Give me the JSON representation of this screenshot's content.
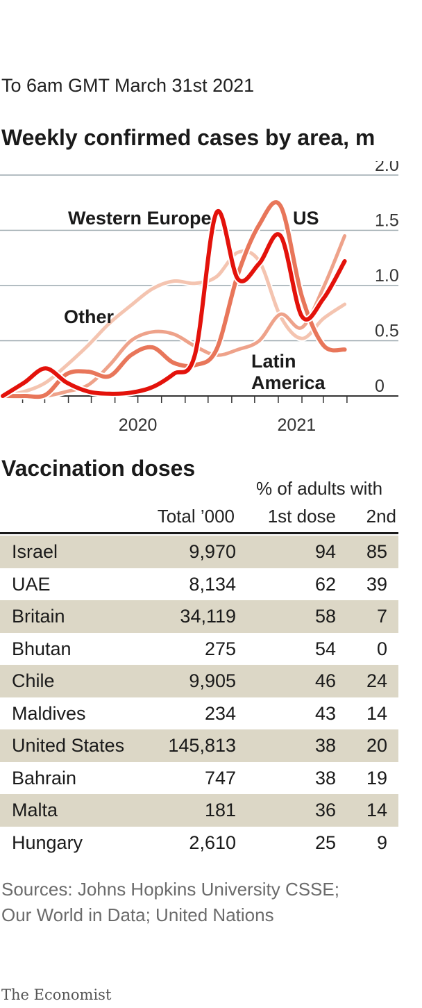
{
  "subtitle": "To 6am GMT March 31st 2021",
  "chart_title": "Weekly confirmed cases by area, m",
  "colors": {
    "western_europe": "#e3120b",
    "us": "#e8765a",
    "latin_america": "#eea28a",
    "other": "#f4c4b0",
    "grid": "#9aa7ad",
    "axis": "#333333",
    "row_shade": "#dcd7c6"
  },
  "chart_data": {
    "type": "line",
    "title": "Weekly confirmed cases by area, m",
    "ylim": [
      0,
      2.0
    ],
    "y_ticks": [
      "0",
      "0.5",
      "1.0",
      "1.5",
      "2.0"
    ],
    "x_tick_labels": [
      "2020",
      "2021"
    ],
    "xlim": [
      "2020-01-06",
      "2021-04-12"
    ],
    "grid": true,
    "series": [
      {
        "name": "Other",
        "color": "#f4c4b0",
        "x": [
          "2020-01-06",
          "2020-02-03",
          "2020-03-02",
          "2020-03-30",
          "2020-04-27",
          "2020-05-25",
          "2020-06-22",
          "2020-07-20",
          "2020-08-17",
          "2020-09-14",
          "2020-10-12",
          "2020-11-09",
          "2020-12-07",
          "2021-01-04",
          "2021-02-01",
          "2021-03-01",
          "2021-03-29"
        ],
        "values": [
          0.0,
          0.04,
          0.12,
          0.28,
          0.46,
          0.66,
          0.82,
          0.97,
          1.04,
          1.02,
          1.08,
          1.3,
          1.22,
          0.72,
          0.52,
          0.7,
          0.83
        ]
      },
      {
        "name": "Latin America",
        "color": "#eea28a",
        "x": [
          "2020-01-06",
          "2020-02-03",
          "2020-03-02",
          "2020-03-30",
          "2020-04-27",
          "2020-05-25",
          "2020-06-22",
          "2020-07-20",
          "2020-08-17",
          "2020-09-14",
          "2020-10-12",
          "2020-11-09",
          "2020-12-07",
          "2021-01-04",
          "2021-02-01",
          "2021-03-01",
          "2021-03-29"
        ],
        "values": [
          0.0,
          0.0,
          0.0,
          0.04,
          0.1,
          0.28,
          0.5,
          0.58,
          0.56,
          0.45,
          0.37,
          0.42,
          0.5,
          0.74,
          0.62,
          0.98,
          1.45
        ]
      },
      {
        "name": "US",
        "color": "#e8765a",
        "x": [
          "2020-01-06",
          "2020-02-03",
          "2020-03-02",
          "2020-03-30",
          "2020-04-27",
          "2020-05-25",
          "2020-06-22",
          "2020-07-20",
          "2020-08-17",
          "2020-09-14",
          "2020-10-12",
          "2020-11-09",
          "2020-12-07",
          "2021-01-04",
          "2021-02-01",
          "2021-03-01",
          "2021-03-29"
        ],
        "values": [
          0.0,
          0.0,
          0.01,
          0.2,
          0.22,
          0.18,
          0.37,
          0.44,
          0.3,
          0.28,
          0.42,
          1.1,
          1.55,
          1.72,
          0.9,
          0.46,
          0.42
        ]
      },
      {
        "name": "Western Europe",
        "color": "#e3120b",
        "x": [
          "2020-01-06",
          "2020-02-03",
          "2020-03-02",
          "2020-03-30",
          "2020-04-27",
          "2020-05-25",
          "2020-06-22",
          "2020-07-20",
          "2020-08-17",
          "2020-09-14",
          "2020-10-12",
          "2020-11-09",
          "2020-12-07",
          "2021-01-04",
          "2021-02-01",
          "2021-03-01",
          "2021-03-29"
        ],
        "values": [
          0.0,
          0.12,
          0.25,
          0.12,
          0.04,
          0.02,
          0.03,
          0.08,
          0.2,
          0.38,
          1.66,
          1.06,
          1.2,
          1.45,
          0.72,
          0.88,
          1.22
        ]
      }
    ],
    "annotations": [
      "Western Europe",
      "US",
      "Other",
      "Latin",
      "America"
    ]
  },
  "vaccination": {
    "title": "Vaccination doses",
    "header_pct": "% of adults with",
    "header_total": "Total ’000",
    "header_first": "1st dose",
    "header_second": "2nd",
    "rows": [
      {
        "country": "Israel",
        "total": "9,970",
        "first": "94",
        "second": "85"
      },
      {
        "country": "UAE",
        "total": "8,134",
        "first": "62",
        "second": "39"
      },
      {
        "country": "Britain",
        "total": "34,119",
        "first": "58",
        "second": "7"
      },
      {
        "country": "Bhutan",
        "total": "275",
        "first": "54",
        "second": "0"
      },
      {
        "country": "Chile",
        "total": "9,905",
        "first": "46",
        "second": "24"
      },
      {
        "country": "Maldives",
        "total": "234",
        "first": "43",
        "second": "14"
      },
      {
        "country": "United States",
        "total": "145,813",
        "first": "38",
        "second": "20"
      },
      {
        "country": "Bahrain",
        "total": "747",
        "first": "38",
        "second": "19"
      },
      {
        "country": "Malta",
        "total": "181",
        "first": "36",
        "second": "14"
      },
      {
        "country": "Hungary",
        "total": "2,610",
        "first": "25",
        "second": "9"
      }
    ]
  },
  "sources_line1": "Sources: Johns Hopkins University CSSE;",
  "sources_line2": "Our World in Data; United Nations",
  "brand": "The Economist"
}
